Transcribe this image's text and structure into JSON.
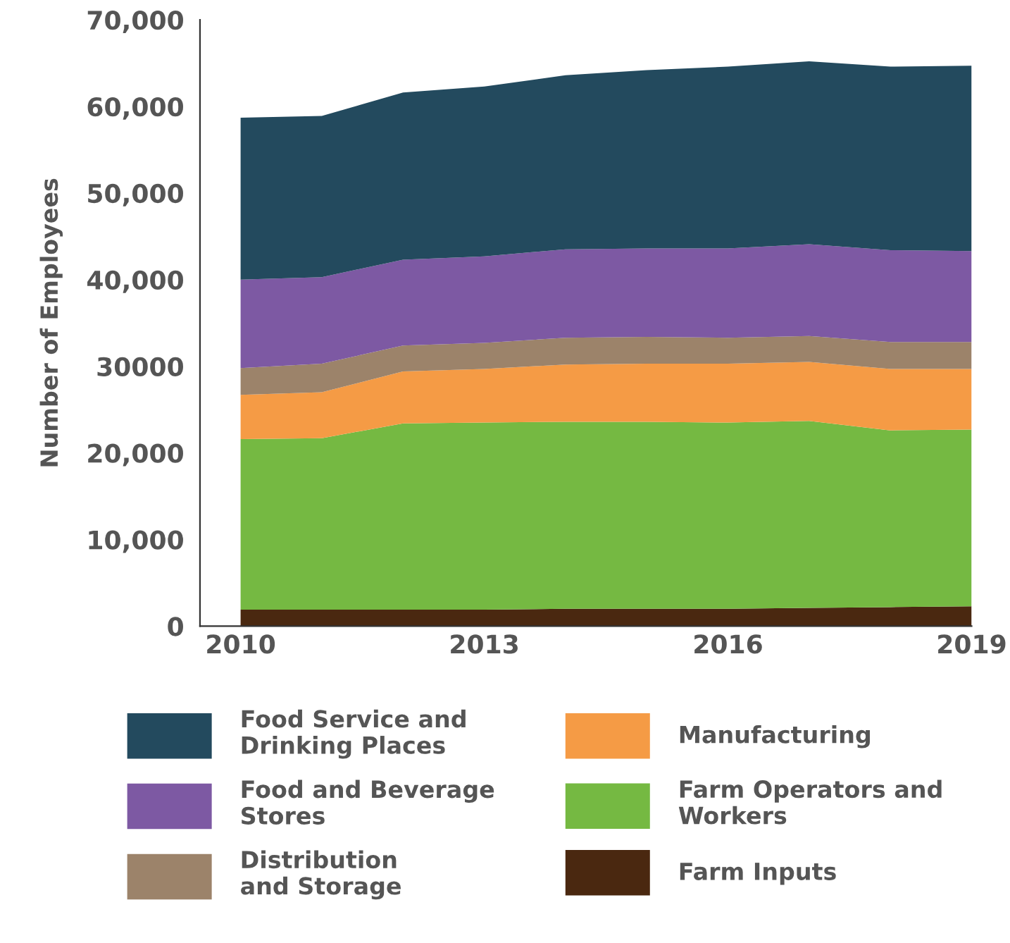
{
  "chart_data": {
    "type": "area",
    "stacked": true,
    "ylabel": "Number of Employees",
    "x": [
      2010,
      2011,
      2012,
      2013,
      2014,
      2015,
      2016,
      2017,
      2018,
      2019
    ],
    "xlim": [
      2009.5,
      2019
    ],
    "xticks": [
      2010,
      2013,
      2016,
      2019
    ],
    "ylim": [
      0,
      70000
    ],
    "yticks": [
      0,
      {
        "value": 10000,
        "label": "10,000"
      },
      {
        "value": 20000,
        "label": "20,000"
      },
      30000,
      {
        "value": 40000,
        "label": "40,000"
      },
      {
        "value": 50000,
        "label": "50,000"
      },
      {
        "value": 60000,
        "label": "60,000"
      },
      {
        "value": 70000,
        "label": "70,000"
      }
    ],
    "grid": false,
    "legend": "bottom",
    "series": [
      {
        "name": "Farm Inputs",
        "color": "#4a2810",
        "values": [
          1900,
          1900,
          1900,
          1900,
          2000,
          2000,
          2000,
          2100,
          2200,
          2300
        ]
      },
      {
        "name": "Farm Operators and\nWorkers",
        "color": "#75b942",
        "values": [
          19700,
          19800,
          21500,
          21600,
          21600,
          21600,
          21500,
          21600,
          20400,
          20400
        ]
      },
      {
        "name": "Manufacturing",
        "color": "#f59b45",
        "values": [
          5100,
          5300,
          6000,
          6200,
          6600,
          6700,
          6800,
          6800,
          7100,
          7000
        ]
      },
      {
        "name": "Distribution\nand Storage",
        "color": "#9c836a",
        "values": [
          3100,
          3300,
          3000,
          3000,
          3100,
          3100,
          3000,
          3000,
          3100,
          3100
        ]
      },
      {
        "name": "Food and Beverage\nStores",
        "color": "#7d59a3",
        "values": [
          10200,
          10000,
          9900,
          10000,
          10200,
          10200,
          10300,
          10600,
          10600,
          10500
        ]
      },
      {
        "name": "Food Service and\nDrinking Places",
        "color": "#234a5e",
        "values": [
          18700,
          18600,
          19300,
          19600,
          20100,
          20600,
          21000,
          21100,
          21200,
          21400
        ]
      }
    ]
  }
}
